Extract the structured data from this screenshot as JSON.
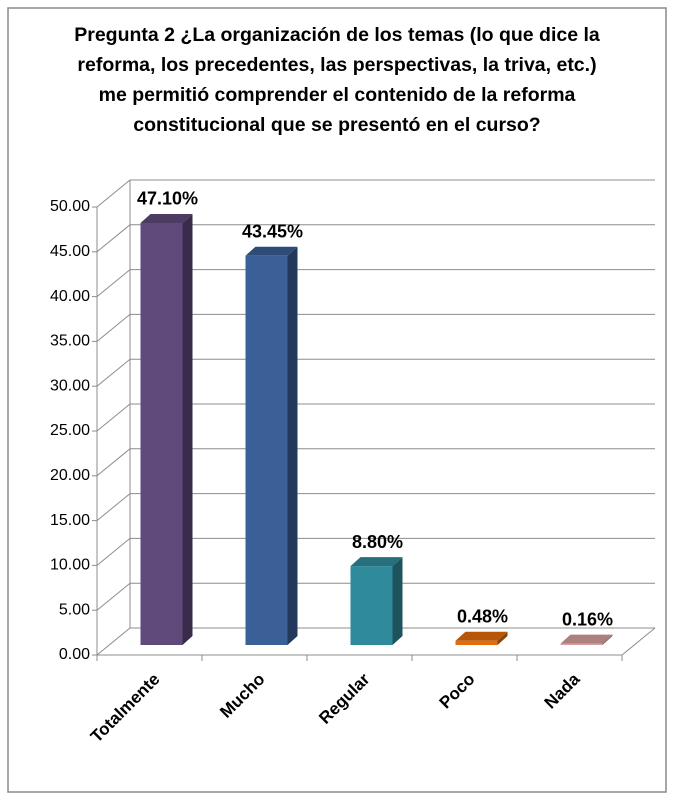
{
  "chart_data": {
    "type": "bar3d",
    "title": "Pregunta 2 ¿La organización de los temas (lo que dice la reforma, los precedentes, las perspectivas, la triva, etc.) me permitió comprender el contenido de la reforma constitucional  que se presentó en el curso?",
    "categories": [
      "Totalmente",
      "Mucho",
      "Regular",
      "Poco",
      "Nada"
    ],
    "values": [
      47.1,
      43.45,
      8.8,
      0.48,
      0.16
    ],
    "value_labels": [
      "47.10%",
      "43.45%",
      "8.80%",
      "0.48%",
      "0.16%"
    ],
    "colors": [
      "#5f4a7b",
      "#3b5f97",
      "#2f8b9b",
      "#e46c0a",
      "#d6a09e"
    ],
    "ylim": [
      0,
      50
    ],
    "yticks": [
      {
        "value": 0,
        "label": "0.00"
      },
      {
        "value": 5,
        "label": "5.00"
      },
      {
        "value": 10,
        "label": "10.00"
      },
      {
        "value": 15,
        "label": "15.00"
      },
      {
        "value": 20,
        "label": "20.00"
      },
      {
        "value": 25,
        "label": "25.00"
      },
      {
        "value": 30,
        "label": "30.00"
      },
      {
        "value": 35,
        "label": "35.00"
      },
      {
        "value": 40,
        "label": "40.00"
      },
      {
        "value": 45,
        "label": "45.00"
      },
      {
        "value": 50,
        "label": "50.00"
      }
    ],
    "grid": true
  }
}
